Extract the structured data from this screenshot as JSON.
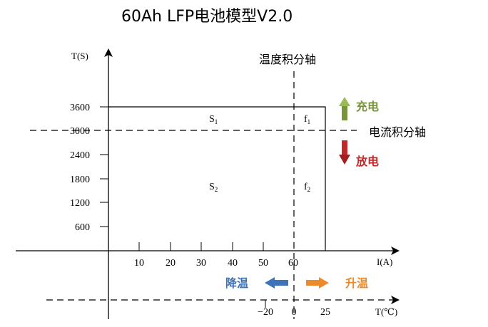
{
  "title": "60Ah LFP电池模型V2.0",
  "y_axis_label": "T(S)",
  "x_axis_label": "I(A)",
  "temp_axis_label": "T(℃)",
  "y_ticks": [
    "3600",
    "3000",
    "2400",
    "1800",
    "1200",
    "600"
  ],
  "x_ticks": [
    "10",
    "20",
    "30",
    "40",
    "50",
    "60"
  ],
  "temp_ticks": [
    "−20",
    "0",
    "25"
  ],
  "temp_integral_axis": "温度积分轴",
  "current_integral_axis": "电流积分轴",
  "regions": {
    "s1": {
      "main": "S",
      "sub": "1"
    },
    "s2": {
      "main": "S",
      "sub": "2"
    },
    "f1": {
      "main": "f",
      "sub": "1"
    },
    "f2": {
      "main": "f",
      "sub": "2"
    }
  },
  "legend": {
    "charge": "充电",
    "discharge": "放电",
    "cool": "降温",
    "heat": "升温"
  },
  "colors": {
    "charge": "#77933c",
    "discharge": "#c0282a",
    "cool": "#3f73b8",
    "heat": "#ed8b2b"
  },
  "icons": {
    "charge": "arrow-up-icon",
    "discharge": "arrow-down-icon",
    "cool": "arrow-left-icon",
    "heat": "arrow-right-icon"
  }
}
